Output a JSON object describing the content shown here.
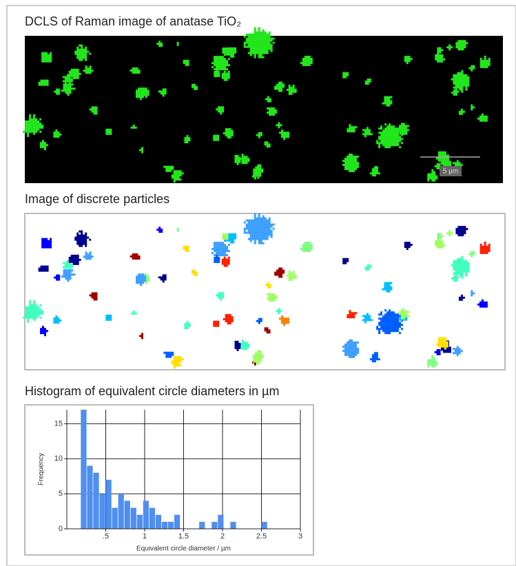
{
  "sections": [
    {
      "title": "DCLS of Raman image of anatase TiO₂",
      "scale_bar": "5 µm"
    },
    {
      "title": "Image of discrete particles"
    },
    {
      "title": "Histogram of equivalent circle diameters in µm"
    }
  ],
  "chart_data": {
    "type": "histogram",
    "bins": [
      0.18,
      0.26,
      0.34,
      0.42,
      0.5,
      0.58,
      0.66,
      0.74,
      0.82,
      0.9,
      0.98,
      1.06,
      1.14,
      1.22,
      1.3,
      1.38,
      1.46,
      1.54,
      1.62,
      1.7,
      1.78,
      1.86,
      1.94,
      2.02,
      2.1,
      2.18,
      2.26,
      2.34,
      2.42,
      2.5,
      2.58
    ],
    "values": [
      17,
      9,
      8,
      5,
      7,
      3,
      5,
      4,
      3,
      2,
      4,
      3,
      2,
      1,
      1,
      2,
      0,
      0,
      0,
      1,
      0,
      1,
      2,
      0,
      1,
      0,
      0,
      0,
      0,
      1
    ],
    "color": "#4f8ff0",
    "xlim": [
      0,
      3
    ],
    "ylim": [
      0,
      17
    ],
    "xticks": [
      {
        "value": 0.5,
        "label": ".5"
      },
      1,
      1.5,
      2,
      2.5,
      3
    ],
    "yticks": [
      0,
      5,
      10,
      15
    ],
    "xlabel": "Equivalent circle diameter / µm",
    "ylabel": "Frequency",
    "grid": true
  }
}
